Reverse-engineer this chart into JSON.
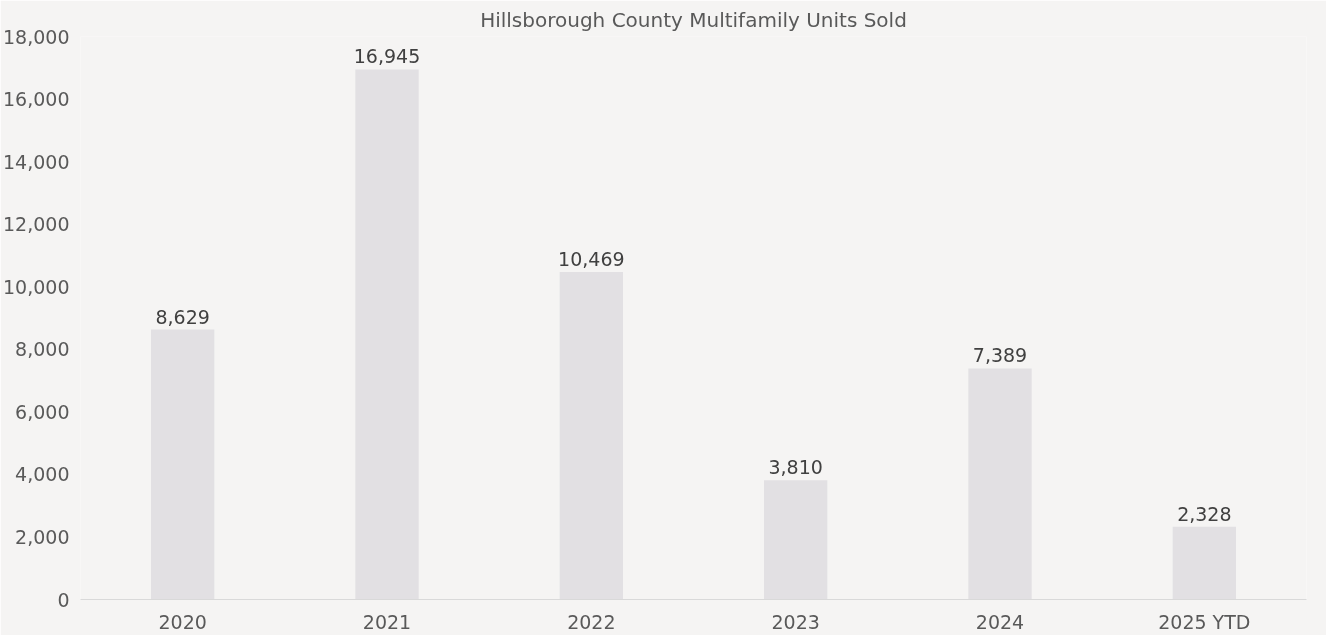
{
  "chart_data": {
    "type": "bar",
    "title": "Hillsborough County Multifamily Units Sold",
    "categories": [
      "2020",
      "2021",
      "2022",
      "2023",
      "2024",
      "2025 YTD"
    ],
    "values": [
      8629,
      16945,
      10469,
      3810,
      7389,
      2328
    ],
    "color": "#e2e0e3",
    "ylim": [
      0,
      18000
    ],
    "yticks": [
      {
        "value": 0,
        "label": "0"
      },
      {
        "value": 2000,
        "label": "2,000"
      },
      {
        "value": 4000,
        "label": "4,000"
      },
      {
        "value": 6000,
        "label": "6,000"
      },
      {
        "value": 8000,
        "label": "8,000"
      },
      {
        "value": 10000,
        "label": "10,000"
      },
      {
        "value": 12000,
        "label": "12,000"
      },
      {
        "value": 14000,
        "label": "14,000"
      },
      {
        "value": 16000,
        "label": "16,000"
      },
      {
        "value": 18000,
        "label": "18,000"
      }
    ],
    "value_labels": [
      "8,629",
      "16,945",
      "10,469",
      "3,810",
      "7,389",
      "2,328"
    ],
    "grid": false
  }
}
